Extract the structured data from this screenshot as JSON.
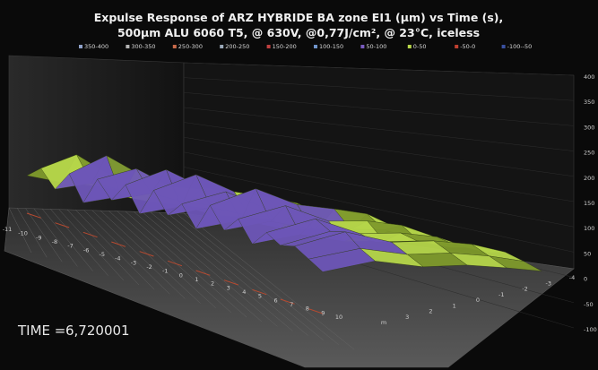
{
  "chart_data": {
    "type": "surface3d",
    "title_line1": "Expulse Response of ARZ HYBRIDE BA zone EI1 (µm) vs Time (s),",
    "title_line2": "500µm ALU 6060 T5, @ 630V, @0,77J/cm², @ 23°C, iceless",
    "legend": [
      {
        "label": "350-400",
        "color": "#8ea0c8"
      },
      {
        "label": "300-350",
        "color": "#b4b4b4"
      },
      {
        "label": "250-300",
        "color": "#c86a4a"
      },
      {
        "label": "200-250",
        "color": "#9aa8b8"
      },
      {
        "label": "150-200",
        "color": "#c04040"
      },
      {
        "label": "100-150",
        "color": "#6f93c9"
      },
      {
        "label": "50-100",
        "color": "#7a5cc0"
      },
      {
        "label": "0-50",
        "color": "#b8d84a"
      },
      {
        "label": "-50-0",
        "color": "#c04030"
      },
      {
        "label": "-100--50",
        "color": "#3a50a0"
      }
    ],
    "z_axis": {
      "ticks": [
        "400",
        "350",
        "300",
        "250",
        "200",
        "150",
        "100",
        "50",
        "0",
        "-50",
        "-100"
      ],
      "min": -100,
      "max": 400
    },
    "x_axis": {
      "ticks": [
        "-11",
        "-10",
        "-9",
        "-8",
        "-7",
        "-6",
        "-5",
        "-4",
        "-3",
        "-2",
        "-1",
        "0",
        "1",
        "2",
        "3",
        "4",
        "5",
        "6",
        "7",
        "8",
        "9",
        "10"
      ]
    },
    "y_axis": {
      "ticks": [
        "m",
        "3",
        "2",
        "1",
        "0",
        "-1",
        "-2",
        "-3",
        "-4"
      ]
    },
    "surface": {
      "rows": 6,
      "cols": 22,
      "values": [
        [
          40,
          55,
          35,
          60,
          30,
          65,
          45,
          70,
          40,
          75,
          50,
          70,
          45,
          80,
          55,
          75,
          50,
          70,
          60,
          65,
          55,
          45
        ],
        [
          30,
          70,
          40,
          80,
          35,
          75,
          50,
          85,
          45,
          90,
          55,
          80,
          50,
          95,
          60,
          85,
          55,
          80,
          70,
          75,
          60,
          50
        ],
        [
          25,
          45,
          30,
          55,
          25,
          50,
          35,
          60,
          30,
          65,
          40,
          55,
          35,
          70,
          45,
          60,
          40,
          55,
          50,
          55,
          45,
          35
        ],
        [
          20,
          35,
          25,
          40,
          20,
          45,
          30,
          50,
          25,
          55,
          35,
          50,
          30,
          60,
          40,
          55,
          35,
          50,
          45,
          50,
          40,
          30
        ],
        [
          15,
          25,
          18,
          30,
          15,
          35,
          22,
          40,
          20,
          45,
          28,
          40,
          25,
          50,
          35,
          45,
          30,
          40,
          35,
          40,
          30,
          20
        ],
        [
          10,
          15,
          12,
          20,
          10,
          22,
          15,
          25,
          12,
          28,
          18,
          25,
          15,
          30,
          20,
          28,
          18,
          22,
          20,
          25,
          18,
          10
        ]
      ]
    },
    "time_label": "TIME =",
    "time_value": "6,720001"
  }
}
